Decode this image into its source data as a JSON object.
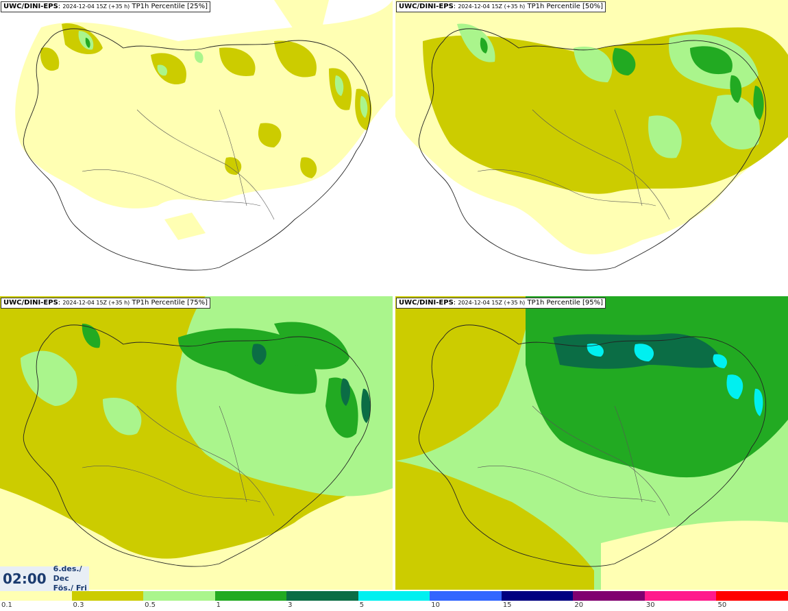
{
  "panels": [
    {
      "model": "UWC/DINI-EPS",
      "run": "2024-12-04 15Z (+35 h)",
      "field": "TP1h Percentile [25%]"
    },
    {
      "model": "UWC/DINI-EPS",
      "run": "2024-12-04 15Z (+35 h)",
      "field": "TP1h Percentile [50%]"
    },
    {
      "model": "UWC/DINI-EPS",
      "run": "2024-12-04 15Z (+35 h)",
      "field": "TP1h Percentile [75%]"
    },
    {
      "model": "UWC/DINI-EPS",
      "run": "2024-12-04 15Z (+35 h)",
      "field": "TP1h Percentile [95%]"
    }
  ],
  "valid_time": {
    "time": "02:00",
    "date_line1": "6.des./ Dec",
    "date_line2": "Fös./ Fri"
  },
  "legend": {
    "ticks": [
      "0.1",
      "0.3",
      "0.5",
      "1",
      "3",
      "5",
      "10",
      "15",
      "20",
      "30",
      "50"
    ],
    "colors": [
      "#ffffb3",
      "#cccc00",
      "#aaf58c",
      "#22aa22",
      "#0b6d45",
      "#00f0f0",
      "#3366ff",
      "#000080",
      "#800070",
      "#ff1a8c",
      "#ff0000"
    ]
  }
}
